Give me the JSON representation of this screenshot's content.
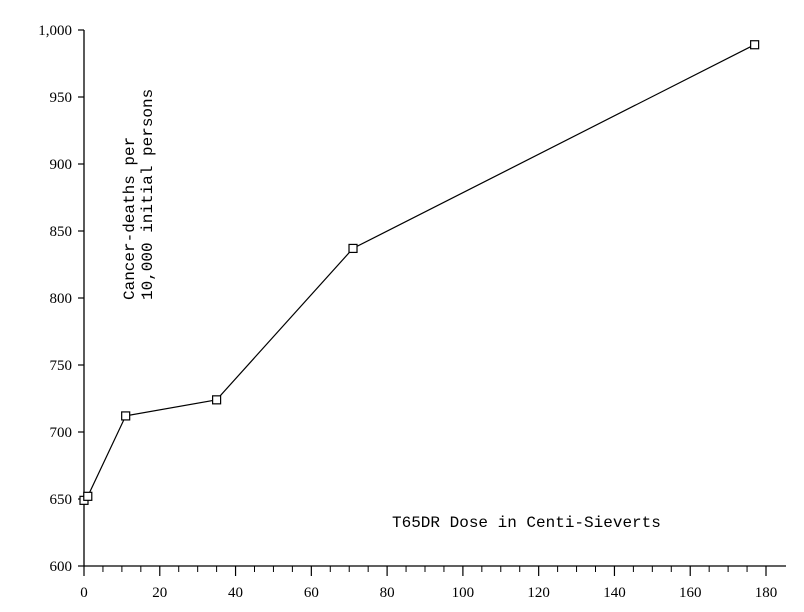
{
  "chart_data": {
    "type": "line",
    "title": "",
    "xlabel": "T65DR Dose in Centi-Sieverts",
    "ylabel_lines": [
      "Cancer-deaths per",
      "10,000 initial persons"
    ],
    "xlim": [
      0,
      180
    ],
    "ylim": [
      600,
      1000
    ],
    "x_ticks": [
      0,
      20,
      40,
      60,
      80,
      100,
      120,
      140,
      160,
      180
    ],
    "x_tick_labels": [
      "0",
      "20",
      "40",
      "60",
      "80",
      "100",
      "120",
      "140",
      "160",
      "180"
    ],
    "y_ticks": [
      600,
      650,
      700,
      750,
      800,
      850,
      900,
      950,
      1000
    ],
    "y_tick_labels": [
      "600",
      "650",
      "700",
      "750",
      "800",
      "850",
      "900",
      "950",
      "1,000"
    ],
    "x_minor_step": 5,
    "grid": false,
    "marker": "open-square",
    "series": [
      {
        "x": [
          0,
          1,
          11,
          35,
          71,
          177
        ],
        "y": [
          649,
          652,
          712,
          724,
          837,
          989
        ]
      }
    ]
  }
}
